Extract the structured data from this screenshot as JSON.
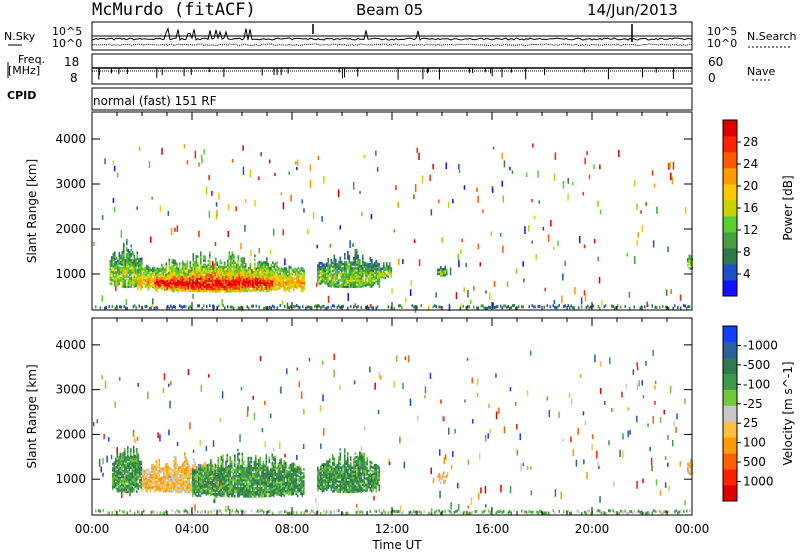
{
  "header": {
    "station": "McMurdo (fitACF)",
    "beam": "Beam 05",
    "date": "14/Jun/2013"
  },
  "top_panels": {
    "nsky": {
      "label": "N.Sky",
      "ticks": [
        "10^5",
        "10^0"
      ]
    },
    "nsearch": {
      "label": "N.Search",
      "ticks": [
        "10^5",
        "10^0"
      ]
    },
    "freq": {
      "label_line1": "Freq.",
      "label_line2": "[MHz]",
      "ticks": [
        "18",
        "8"
      ]
    },
    "nave": {
      "label": "Nave",
      "ticks": [
        "60",
        "0"
      ]
    },
    "cpid": {
      "label": "CPID",
      "value": "normal (fast) 151 RF"
    }
  },
  "chart_data": [
    {
      "type": "heatmap",
      "name": "Power",
      "ylabel": "Slant Range [km]",
      "y_ticks": [
        1000,
        2000,
        3000,
        4000
      ],
      "ylim": [
        200,
        4600
      ],
      "xlim": [
        0,
        24
      ],
      "colorbar": {
        "label": "Power [dB]",
        "ticks": [
          4,
          8,
          12,
          16,
          20,
          24,
          28
        ],
        "colors": [
          "#1010ff",
          "#2050c8",
          "#2f7a48",
          "#46a040",
          "#5ad030",
          "#c8d200",
          "#ffc800",
          "#ff9a00",
          "#ff5a00",
          "#ff2200",
          "#e00000"
        ]
      },
      "regions": [
        {
          "x": [
            0.7,
            2.0
          ],
          "y": [
            700,
            1800
          ],
          "level": 0.35
        },
        {
          "x": [
            1.8,
            8.5
          ],
          "y": [
            600,
            1500
          ],
          "level": 0.55
        },
        {
          "x": [
            2.5,
            7.2
          ],
          "y": [
            650,
            1200
          ],
          "level": 0.9
        },
        {
          "x": [
            9.0,
            11.5
          ],
          "y": [
            700,
            1600
          ],
          "level": 0.3
        },
        {
          "x": [
            11.4,
            12.0
          ],
          "y": [
            900,
            1300
          ],
          "level": 0.35
        },
        {
          "x": [
            13.8,
            14.2
          ],
          "y": [
            950,
            1200
          ],
          "level": 0.3
        },
        {
          "x": [
            23.8,
            24.0
          ],
          "y": [
            1100,
            1500
          ],
          "level": 0.4
        }
      ]
    },
    {
      "type": "heatmap",
      "name": "Velocity",
      "xlabel": "Time UT",
      "ylabel": "Slant Range [km]",
      "y_ticks": [
        1000,
        2000,
        3000,
        4000
      ],
      "ylim": [
        200,
        4600
      ],
      "xlim": [
        0,
        24
      ],
      "x_ticks": [
        "00:00",
        "04:00",
        "08:00",
        "12:00",
        "16:00",
        "20:00",
        "00:00"
      ],
      "colorbar": {
        "label": "Velocity [m s^-1]",
        "ticks": [
          "1000",
          "500",
          "100",
          "25",
          "-25",
          "-100",
          "-500",
          "-1000"
        ],
        "colors": [
          "#1040ff",
          "#2a5fa0",
          "#2f7a50",
          "#3f9a48",
          "#72c83a",
          "#c8c8c8",
          "#ffc040",
          "#ff9a00",
          "#ff6000",
          "#ff2000",
          "#e00000"
        ]
      },
      "regions": [
        {
          "x": [
            0.8,
            2.0
          ],
          "y": [
            700,
            1900
          ],
          "level": "toward"
        },
        {
          "x": [
            2.0,
            5.5
          ],
          "y": [
            700,
            1600
          ],
          "level": "away"
        },
        {
          "x": [
            4.0,
            8.5
          ],
          "y": [
            600,
            1700
          ],
          "level": "toward"
        },
        {
          "x": [
            9.0,
            11.5
          ],
          "y": [
            700,
            1700
          ],
          "level": "toward"
        },
        {
          "x": [
            13.8,
            14.2
          ],
          "y": [
            900,
            1200
          ],
          "level": "away"
        },
        {
          "x": [
            23.8,
            24.0
          ],
          "y": [
            1100,
            1500
          ],
          "level": "away"
        }
      ]
    }
  ]
}
